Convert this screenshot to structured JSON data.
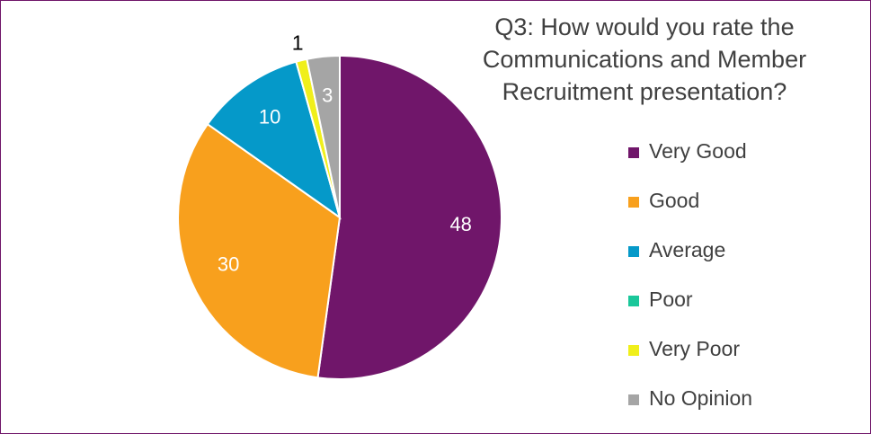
{
  "chart_data": {
    "type": "pie",
    "title": "Q3: How would you rate the Communications and Member Recruitment presentation?",
    "categories": [
      "Very Good",
      "Good",
      "Average",
      "Poor",
      "Very Poor",
      "No Opinion"
    ],
    "values": [
      48,
      30,
      10,
      0,
      1,
      3
    ],
    "colors": [
      "#70166a",
      "#f8a01d",
      "#0599c9",
      "#1ac79a",
      "#f0ef1b",
      "#a5a5a5"
    ],
    "legend": "right"
  }
}
